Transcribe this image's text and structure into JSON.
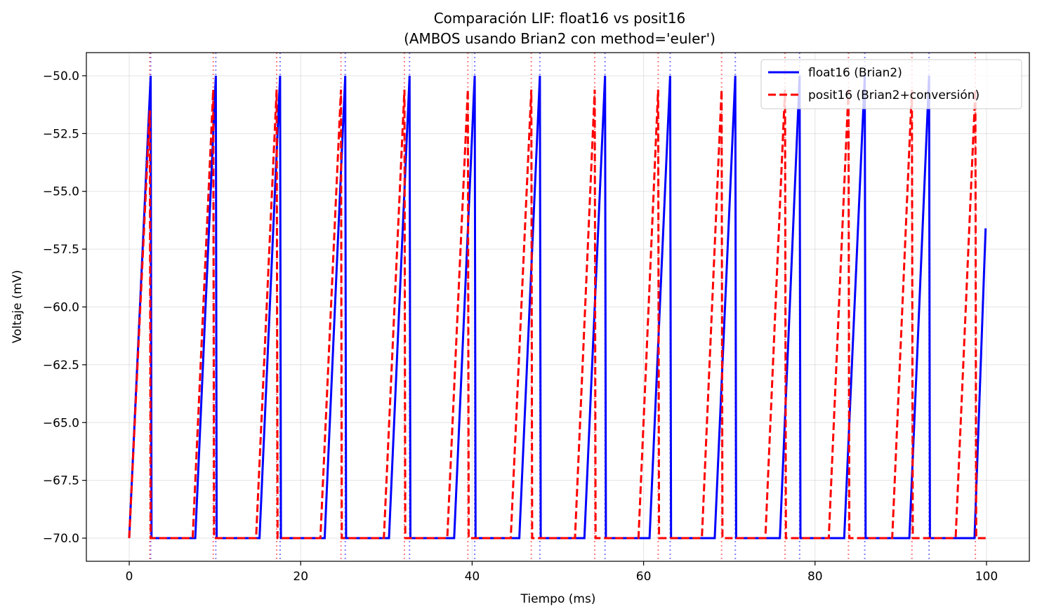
{
  "chart_data": {
    "type": "line",
    "title_line1": "Comparación LIF: float16 vs posit16",
    "title_line2": "(AMBOS usando Brian2 con method='euler')",
    "xlabel": "Tiempo (ms)",
    "ylabel": "Voltaje (mV)",
    "xlim": [
      -5,
      105
    ],
    "ylim": [
      -71,
      -49
    ],
    "x_ticks": [
      0,
      20,
      40,
      60,
      80,
      100
    ],
    "x_tick_labels": [
      "0",
      "20",
      "40",
      "60",
      "80",
      "100"
    ],
    "y_ticks": [
      -70,
      -67.5,
      -65,
      -62.5,
      -60,
      -57.5,
      -55,
      -52.5,
      -50
    ],
    "y_tick_labels": [
      "−70.0",
      "−67.5",
      "−65.0",
      "−62.5",
      "−60.0",
      "−57.5",
      "−55.0",
      "−52.5",
      "−50.0"
    ],
    "grid": true,
    "legend_position": "upper-right",
    "series": [
      {
        "name": "float16 (Brian2)",
        "color": "#0000ff",
        "style": "solid",
        "reset": -70,
        "threshold": -50,
        "start": [
          0,
          -70
        ],
        "spikes": [
          {
            "rise_start": 0.0,
            "peak": 2.5,
            "reset": 2.6
          },
          {
            "rise_start": 7.7,
            "peak": 10.1,
            "reset": 10.2
          },
          {
            "rise_start": 15.2,
            "peak": 17.6,
            "reset": 17.7
          },
          {
            "rise_start": 22.8,
            "peak": 25.2,
            "reset": 25.3
          },
          {
            "rise_start": 30.3,
            "peak": 32.7,
            "reset": 32.8
          },
          {
            "rise_start": 37.9,
            "peak": 40.3,
            "reset": 40.4
          },
          {
            "rise_start": 45.5,
            "peak": 47.9,
            "reset": 48.0
          },
          {
            "rise_start": 53.1,
            "peak": 55.5,
            "reset": 55.6
          },
          {
            "rise_start": 60.7,
            "peak": 63.1,
            "reset": 63.2
          },
          {
            "rise_start": 68.3,
            "peak": 70.7,
            "reset": 70.8
          },
          {
            "rise_start": 75.9,
            "peak": 78.2,
            "reset": 78.3
          },
          {
            "rise_start": 83.4,
            "peak": 85.8,
            "reset": 85.9
          },
          {
            "rise_start": 91.0,
            "peak": 93.3,
            "reset": 93.4
          },
          {
            "rise_start": 98.6,
            "peak": null,
            "reset": null
          }
        ],
        "end": [
          99.9,
          -56.6
        ],
        "spike_markers": [
          2.5,
          10.1,
          17.6,
          25.2,
          32.7,
          40.3,
          47.9,
          55.5,
          63.1,
          70.7,
          78.2,
          85.8,
          93.3
        ]
      },
      {
        "name": "posit16 (Brian2+conversión)",
        "color": "#ff0000",
        "style": "dashed",
        "reset": -70,
        "start": [
          0,
          -70
        ],
        "spikes": [
          {
            "rise_start": 0.0,
            "peak": 2.4,
            "peak_v": -51.5,
            "reset": 2.5
          },
          {
            "rise_start": 7.4,
            "peak": 9.8,
            "peak_v": -50.6,
            "reset": 9.9
          },
          {
            "rise_start": 14.8,
            "peak": 17.2,
            "peak_v": -50.6,
            "reset": 17.3
          },
          {
            "rise_start": 22.3,
            "peak": 24.7,
            "peak_v": -50.6,
            "reset": 24.8
          },
          {
            "rise_start": 29.7,
            "peak": 32.1,
            "peak_v": -50.6,
            "reset": 32.2
          },
          {
            "rise_start": 37.1,
            "peak": 39.5,
            "peak_v": -50.6,
            "reset": 39.6
          },
          {
            "rise_start": 44.5,
            "peak": 46.9,
            "peak_v": -50.6,
            "reset": 47.0
          },
          {
            "rise_start": 52.0,
            "peak": 54.3,
            "peak_v": -50.6,
            "reset": 54.4
          },
          {
            "rise_start": 59.4,
            "peak": 61.7,
            "peak_v": -50.6,
            "reset": 61.8
          },
          {
            "rise_start": 66.8,
            "peak": 69.1,
            "peak_v": -50.6,
            "reset": 69.2
          },
          {
            "rise_start": 74.2,
            "peak": 76.5,
            "peak_v": -50.6,
            "reset": 76.6
          },
          {
            "rise_start": 81.6,
            "peak": 83.9,
            "peak_v": -50.6,
            "reset": 84.0
          },
          {
            "rise_start": 89.0,
            "peak": 91.3,
            "peak_v": -50.6,
            "reset": 91.4
          },
          {
            "rise_start": 96.4,
            "peak": 98.7,
            "peak_v": -50.6,
            "reset": 98.8
          }
        ],
        "end": [
          100,
          -70
        ],
        "spike_markers": [
          2.4,
          9.8,
          17.2,
          24.7,
          32.1,
          39.5,
          46.9,
          54.3,
          61.7,
          69.1,
          76.5,
          83.9,
          91.3,
          98.7
        ]
      }
    ]
  }
}
